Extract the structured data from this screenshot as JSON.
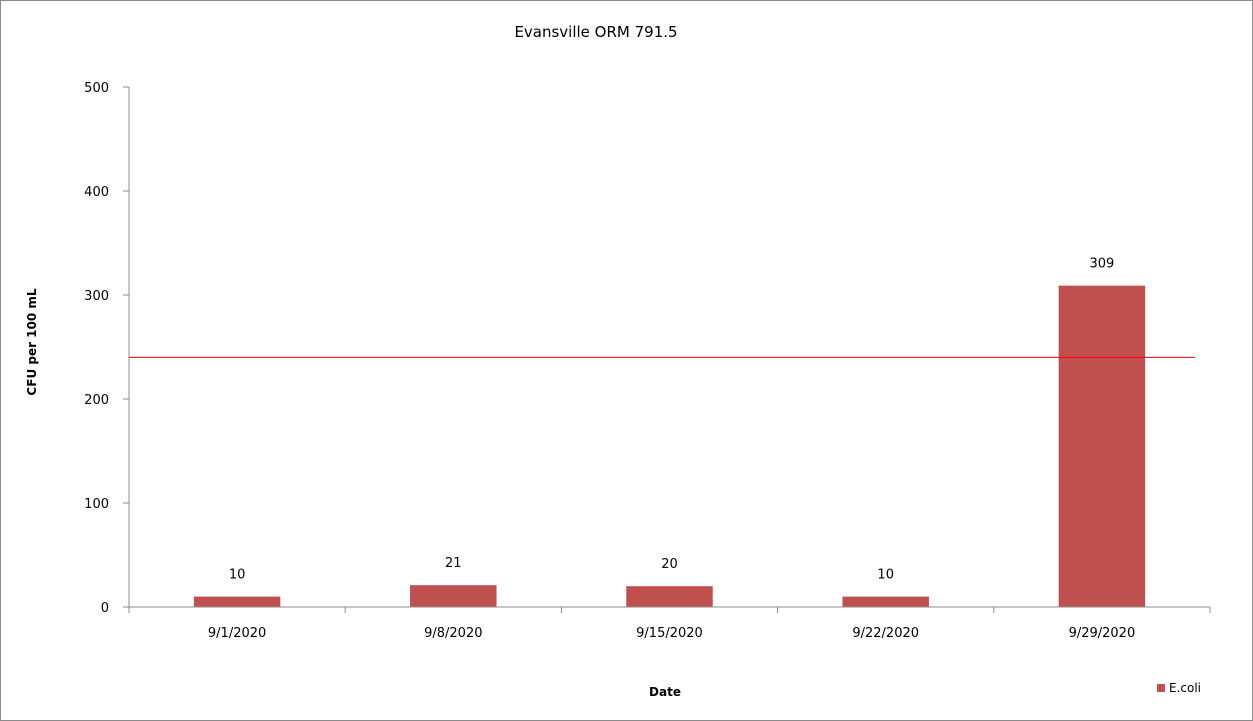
{
  "chart_data": {
    "type": "bar",
    "title": "Evansville ORM 791.5",
    "xlabel": "Date",
    "ylabel": "CFU per 100 mL",
    "categories": [
      "9/1/2020",
      "9/8/2020",
      "9/15/2020",
      "9/22/2020",
      "9/29/2020"
    ],
    "series": [
      {
        "name": "E.coli",
        "values": [
          10,
          21,
          20,
          10,
          309
        ],
        "color": "#c0504d"
      }
    ],
    "data_labels": [
      "10",
      "21",
      "20",
      "10",
      "309"
    ],
    "ylim": [
      0,
      500
    ],
    "yticks": [
      0,
      100,
      200,
      300,
      400,
      500
    ],
    "reference_line": {
      "value": 240,
      "color": "#ff0000"
    },
    "grid": false,
    "legend_position": "bottom-right"
  }
}
